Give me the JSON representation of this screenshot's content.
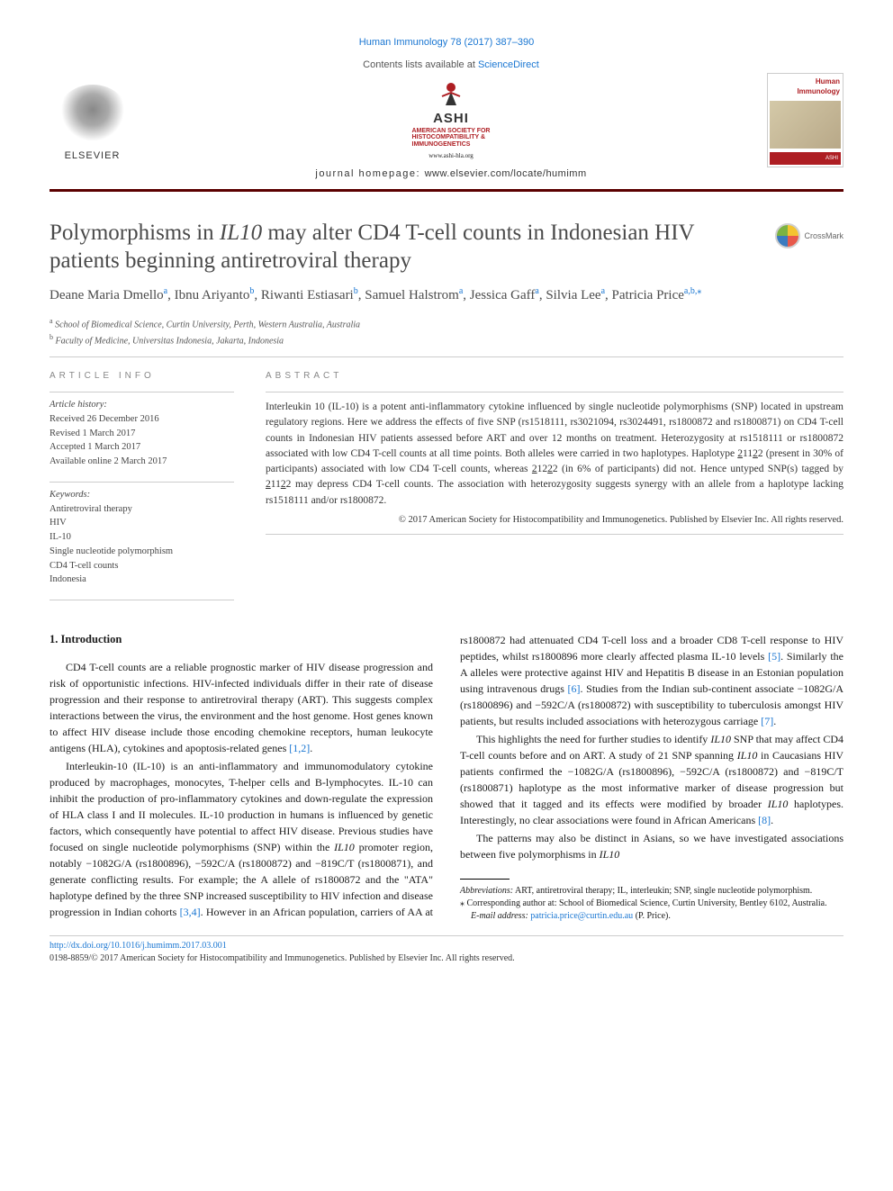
{
  "journal_ref": {
    "prefix": "",
    "link_text": "Human Immunology 78 (2017) 387–390",
    "href": "#"
  },
  "header": {
    "contents_prefix": "Contents lists available at ",
    "contents_link": "ScienceDirect",
    "elsevier_label": "ELSEVIER",
    "ashi_main": "ASHI",
    "ashi_sub1": "AMERICAN SOCIETY FOR",
    "ashi_sub2": "HISTOCOMPATIBILITY &",
    "ashi_sub3": "IMMUNOGENETICS",
    "ashi_url": "www.ashi-hla.org",
    "homepage_label": "journal homepage: ",
    "homepage_url": "www.elsevier.com/locate/humimm",
    "cover_title1": "Human",
    "cover_title2": "Immunology",
    "cover_ashi": "ASHI"
  },
  "title": {
    "pre": "Polymorphisms in ",
    "italic": "IL10",
    "post": " may alter CD4 T-cell counts in Indonesian HIV patients beginning antiretroviral therapy"
  },
  "crossmark_label": "CrossMark",
  "authors_html": "Deane Maria Dmello|a|, Ibnu Ariyanto|b|, Riwanti Estiasari|b|, Samuel Halstrom|a|, Jessica Gaff|a|, Silvia Lee|a|, Patricia Price|a,b,*|",
  "authors": [
    {
      "name": "Deane Maria Dmello",
      "sup": "a"
    },
    {
      "name": "Ibnu Ariyanto",
      "sup": "b"
    },
    {
      "name": "Riwanti Estiasari",
      "sup": "b"
    },
    {
      "name": "Samuel Halstrom",
      "sup": "a"
    },
    {
      "name": "Jessica Gaff",
      "sup": "a"
    },
    {
      "name": "Silvia Lee",
      "sup": "a"
    },
    {
      "name": "Patricia Price",
      "sup": "a,b,",
      "star": "⁎"
    }
  ],
  "affiliations": [
    {
      "sup": "a",
      "text": "School of Biomedical Science, Curtin University, Perth, Western Australia, Australia"
    },
    {
      "sup": "b",
      "text": "Faculty of Medicine, Universitas Indonesia, Jakarta, Indonesia"
    }
  ],
  "info": {
    "heading": "ARTICLE INFO",
    "history_label": "Article history:",
    "history": [
      "Received 26 December 2016",
      "Revised 1 March 2017",
      "Accepted 1 March 2017",
      "Available online 2 March 2017"
    ],
    "keywords_label": "Keywords:",
    "keywords": [
      "Antiretroviral therapy",
      "HIV",
      "IL-10",
      "Single nucleotide polymorphism",
      "CD4 T-cell counts",
      "Indonesia"
    ]
  },
  "abstract": {
    "heading": "ABSTRACT",
    "text": "Interleukin 10 (IL-10) is a potent anti-inflammatory cytokine influenced by single nucleotide polymorphisms (SNP) located in upstream regulatory regions. Here we address the effects of five SNP (rs1518111, rs3021094, rs3024491, rs1800872 and rs1800871) on CD4 T-cell counts in Indonesian HIV patients assessed before ART and over 12 months on treatment. Heterozygosity at rs1518111 or rs1800872 associated with low CD4 T-cell counts at all time points. Both alleles were carried in two haplotypes. Haplotype 21122 (present in 30% of participants) associated with low CD4 T-cell counts, whereas 21222 (in 6% of participants) did not. Hence untyped SNP(s) tagged by 21122 may depress CD4 T-cell counts. The association with heterozygosity suggests synergy with an allele from a haplotype lacking rs1518111 and/or rs1800872.",
    "copyright": "© 2017 American Society for Histocompatibility and Immunogenetics. Published by Elsevier Inc. All rights reserved."
  },
  "body": {
    "section1_heading": "1. Introduction",
    "p1": "CD4 T-cell counts are a reliable prognostic marker of HIV disease progression and risk of opportunistic infections. HIV-infected individuals differ in their rate of disease progression and their response to antiretroviral therapy (ART). This suggests complex interactions between the virus, the environment and the host genome. Host genes known to affect HIV disease include those encoding chemokine receptors, human leukocyte antigens (HLA), cytokines and apoptosis-related genes ",
    "p1_ref": "[1,2]",
    "p1_end": ".",
    "p2_a": "Interleukin-10 (IL-10) is an anti-inflammatory and immunomodulatory cytokine produced by macrophages, monocytes, T-helper cells and B-lymphocytes. IL-10 can inhibit the production of pro-inflammatory cytokines and down-regulate the expression of HLA class I and II molecules. IL-10 production in humans is influenced by genetic factors, which consequently have potential to affect HIV disease. Previous studies have focused on single nucleotide polymorphisms (SNP) within the ",
    "p2_it": "IL10",
    "p2_b": " promoter region, notably −1082G/A (rs1800896), −592C/A (rs1800872) and −819C/T (rs1800871), and generate conflicting results. For example; the A allele of rs1800872 and the \"ATA\" haplotype defined by the three SNP increased susceptibility to HIV infection and disease progression in Indian cohorts ",
    "p2_ref1": "[3,4]",
    "p2_c": ". However in an African population, carriers of AA at rs1800872 had attenuated CD4 T-cell loss and a broader CD8 T-cell response to HIV peptides, whilst rs1800896 more clearly affected plasma IL-10 levels ",
    "p2_ref2": "[5]",
    "p2_d": ". Similarly the A alleles were protective against HIV and Hepatitis B disease in an Estonian population using intravenous drugs ",
    "p2_ref3": "[6]",
    "p2_e": ". Studies from the Indian sub-continent associate −1082G/A (rs1800896) and −592C/A (rs1800872) with susceptibility to tuberculosis amongst HIV patients, but results included associations with heterozygous carriage ",
    "p2_ref4": "[7]",
    "p2_f": ".",
    "p3_a": "This highlights the need for further studies to identify ",
    "p3_it1": "IL10",
    "p3_b": " SNP that may affect CD4 T-cell counts before and on ART. A study of 21 SNP spanning ",
    "p3_it2": "IL10",
    "p3_c": " in Caucasians HIV patients confirmed the −1082G/A (rs1800896), −592C/A (rs1800872) and −819C/T (rs1800871) haplotype as the most informative marker of disease progression but showed that it tagged and its effects were modified by broader ",
    "p3_it3": "IL10",
    "p3_d": " haplotypes. Interestingly, no clear associations were found in African Americans ",
    "p3_ref": "[8]",
    "p3_e": ".",
    "p4_a": "The patterns may also be distinct in Asians, so we have investigated associations between five polymorphisms in ",
    "p4_it": "IL10"
  },
  "footnotes": {
    "abbr_label": "Abbreviations:",
    "abbr_text": " ART, antiretroviral therapy; IL, interleukin; SNP, single nucleotide polymorphism.",
    "corr_marker": "⁎",
    "corr_text": " Corresponding author at: School of Biomedical Science, Curtin University, Bentley 6102, Australia.",
    "email_label": "E-mail address: ",
    "email": "patricia.price@curtin.edu.au",
    "email_suffix": " (P. Price)."
  },
  "footer": {
    "doi": "http://dx.doi.org/10.1016/j.humimm.2017.03.001",
    "issn": "0198-8859/© 2017 American Society for Histocompatibility and Immunogenetics. Published by Elsevier Inc. All rights reserved."
  },
  "colors": {
    "link": "#1976d2",
    "maroon": "#5b0000",
    "ashi_red": "#ae1e23",
    "text": "#1a1a1a",
    "gray": "#888"
  }
}
